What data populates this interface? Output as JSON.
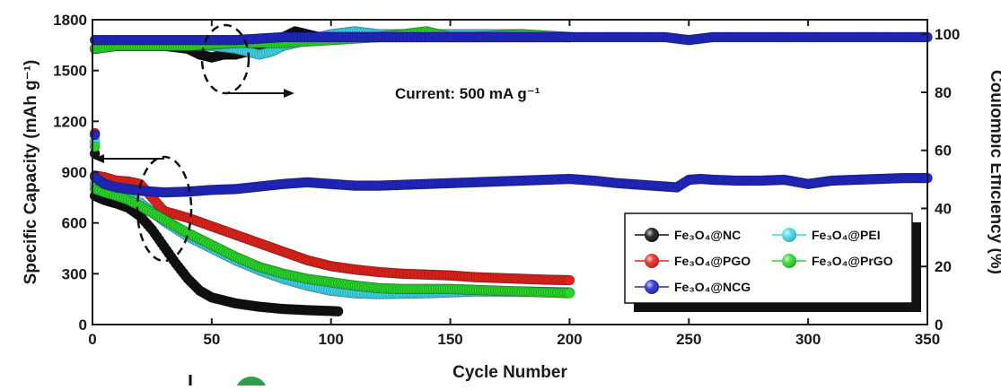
{
  "chart_data": {
    "type": "scatter",
    "xlabel": "Cycle Number",
    "ylabel_left": "Specific Capacity (mAh g⁻¹)",
    "ylabel_right": "Coulombic Efficiency (%)",
    "xlim": [
      0,
      350
    ],
    "ylim_left": [
      0,
      1800
    ],
    "ylim_right": [
      0,
      105
    ],
    "x_ticks": [
      0,
      50,
      100,
      150,
      200,
      250,
      300,
      350
    ],
    "y_ticks_left": [
      0,
      300,
      600,
      900,
      1200,
      1500,
      1800
    ],
    "y_ticks_right": [
      0,
      20,
      40,
      60,
      80,
      100
    ],
    "annotation": "Current: 500 mA g⁻¹",
    "grid": false,
    "legend_position": "bottom-right",
    "series": [
      {
        "name": "Fe₃O₄@NC",
        "color": "#111111",
        "axis": "left",
        "capacity": [
          [
            1,
            760
          ],
          [
            5,
            735
          ],
          [
            10,
            715
          ],
          [
            15,
            690
          ],
          [
            20,
            640
          ],
          [
            25,
            560
          ],
          [
            30,
            460
          ],
          [
            35,
            360
          ],
          [
            40,
            270
          ],
          [
            45,
            200
          ],
          [
            50,
            160
          ],
          [
            60,
            125
          ],
          [
            70,
            105
          ],
          [
            80,
            92
          ],
          [
            90,
            85
          ],
          [
            100,
            80
          ],
          [
            103,
            78
          ]
        ],
        "efficiency": [
          [
            1,
            95
          ],
          [
            5,
            96
          ],
          [
            10,
            96
          ],
          [
            20,
            96
          ],
          [
            30,
            96
          ],
          [
            40,
            95
          ],
          [
            45,
            93
          ],
          [
            50,
            92
          ],
          [
            55,
            93
          ],
          [
            60,
            93
          ],
          [
            65,
            94
          ],
          [
            70,
            96
          ],
          [
            75,
            98
          ],
          [
            80,
            99
          ],
          [
            85,
            101
          ],
          [
            90,
            100
          ],
          [
            95,
            99
          ],
          [
            100,
            99
          ]
        ]
      },
      {
        "name": "Fe₃O₄@PEI",
        "color": "#3fd6e6",
        "axis": "left",
        "capacity": [
          [
            1,
            830
          ],
          [
            5,
            800
          ],
          [
            10,
            770
          ],
          [
            20,
            720
          ],
          [
            30,
            610
          ],
          [
            40,
            520
          ],
          [
            50,
            450
          ],
          [
            60,
            380
          ],
          [
            70,
            320
          ],
          [
            80,
            270
          ],
          [
            90,
            230
          ],
          [
            100,
            200
          ],
          [
            110,
            185
          ],
          [
            120,
            180
          ],
          [
            140,
            185
          ],
          [
            160,
            195
          ],
          [
            180,
            195
          ],
          [
            200,
            190
          ]
        ],
        "efficiency": [
          [
            1,
            95
          ],
          [
            10,
            96
          ],
          [
            20,
            96
          ],
          [
            30,
            96
          ],
          [
            40,
            96
          ],
          [
            50,
            96
          ],
          [
            60,
            95
          ],
          [
            65,
            94
          ],
          [
            70,
            93
          ],
          [
            75,
            94
          ],
          [
            80,
            96
          ],
          [
            90,
            98
          ],
          [
            100,
            100
          ],
          [
            110,
            101
          ],
          [
            120,
            100
          ],
          [
            140,
            100
          ],
          [
            160,
            100
          ],
          [
            180,
            100
          ],
          [
            200,
            99
          ]
        ]
      },
      {
        "name": "Fe₃O₄@PGO",
        "color": "#e0241c",
        "axis": "left",
        "capacity": [
          [
            1,
            880
          ],
          [
            5,
            870
          ],
          [
            10,
            850
          ],
          [
            15,
            845
          ],
          [
            20,
            830
          ],
          [
            25,
            750
          ],
          [
            30,
            670
          ],
          [
            40,
            630
          ],
          [
            50,
            580
          ],
          [
            60,
            530
          ],
          [
            70,
            480
          ],
          [
            80,
            430
          ],
          [
            90,
            380
          ],
          [
            100,
            345
          ],
          [
            110,
            325
          ],
          [
            120,
            310
          ],
          [
            130,
            300
          ],
          [
            140,
            295
          ],
          [
            150,
            290
          ],
          [
            160,
            280
          ],
          [
            170,
            275
          ],
          [
            180,
            270
          ],
          [
            190,
            265
          ],
          [
            200,
            262
          ]
        ],
        "efficiency": [
          [
            1,
            95
          ],
          [
            10,
            96
          ],
          [
            20,
            96
          ],
          [
            40,
            96
          ],
          [
            60,
            97
          ],
          [
            80,
            98
          ],
          [
            90,
            99
          ],
          [
            100,
            99
          ],
          [
            120,
            99
          ],
          [
            140,
            99
          ],
          [
            160,
            99
          ],
          [
            180,
            99
          ],
          [
            200,
            99
          ]
        ]
      },
      {
        "name": "Fe₃O₄@PrGO",
        "color": "#2ad62a",
        "axis": "left",
        "capacity": [
          [
            1,
            800
          ],
          [
            5,
            780
          ],
          [
            10,
            760
          ],
          [
            15,
            735
          ],
          [
            20,
            700
          ],
          [
            30,
            620
          ],
          [
            40,
            540
          ],
          [
            50,
            470
          ],
          [
            60,
            400
          ],
          [
            70,
            340
          ],
          [
            80,
            300
          ],
          [
            90,
            270
          ],
          [
            100,
            250
          ],
          [
            110,
            230
          ],
          [
            120,
            215
          ],
          [
            130,
            210
          ],
          [
            140,
            210
          ],
          [
            150,
            210
          ],
          [
            160,
            205
          ],
          [
            170,
            200
          ],
          [
            180,
            195
          ],
          [
            190,
            190
          ],
          [
            200,
            185
          ]
        ],
        "efficiency": [
          [
            1,
            95
          ],
          [
            10,
            96
          ],
          [
            20,
            96
          ],
          [
            40,
            96
          ],
          [
            60,
            97
          ],
          [
            80,
            97
          ],
          [
            100,
            98
          ],
          [
            120,
            99
          ],
          [
            140,
            101
          ],
          [
            150,
            99
          ],
          [
            160,
            99
          ],
          [
            180,
            100
          ],
          [
            200,
            99
          ]
        ]
      },
      {
        "name": "Fe₃O₄@NCG",
        "color": "#2228c4",
        "axis": "left",
        "capacity": [
          [
            1,
            870
          ],
          [
            5,
            830
          ],
          [
            10,
            810
          ],
          [
            15,
            800
          ],
          [
            20,
            790
          ],
          [
            30,
            780
          ],
          [
            40,
            785
          ],
          [
            50,
            795
          ],
          [
            60,
            800
          ],
          [
            70,
            815
          ],
          [
            80,
            830
          ],
          [
            90,
            840
          ],
          [
            100,
            830
          ],
          [
            110,
            820
          ],
          [
            120,
            820
          ],
          [
            130,
            825
          ],
          [
            140,
            830
          ],
          [
            150,
            835
          ],
          [
            160,
            840
          ],
          [
            170,
            845
          ],
          [
            180,
            850
          ],
          [
            190,
            855
          ],
          [
            200,
            860
          ],
          [
            210,
            850
          ],
          [
            220,
            835
          ],
          [
            230,
            825
          ],
          [
            240,
            815
          ],
          [
            245,
            810
          ],
          [
            250,
            855
          ],
          [
            255,
            860
          ],
          [
            260,
            855
          ],
          [
            270,
            850
          ],
          [
            280,
            850
          ],
          [
            290,
            855
          ],
          [
            300,
            830
          ],
          [
            310,
            850
          ],
          [
            320,
            855
          ],
          [
            330,
            860
          ],
          [
            340,
            865
          ],
          [
            350,
            865
          ]
        ],
        "efficiency": [
          [
            1,
            98
          ],
          [
            5,
            98
          ],
          [
            10,
            98
          ],
          [
            20,
            98
          ],
          [
            40,
            98
          ],
          [
            60,
            98
          ],
          [
            80,
            99
          ],
          [
            100,
            99
          ],
          [
            120,
            99
          ],
          [
            140,
            99
          ],
          [
            160,
            99
          ],
          [
            180,
            99
          ],
          [
            200,
            99
          ],
          [
            220,
            99
          ],
          [
            240,
            99
          ],
          [
            250,
            98
          ],
          [
            260,
            99
          ],
          [
            280,
            99
          ],
          [
            300,
            99
          ],
          [
            320,
            99
          ],
          [
            340,
            99
          ],
          [
            350,
            99
          ]
        ]
      }
    ]
  }
}
